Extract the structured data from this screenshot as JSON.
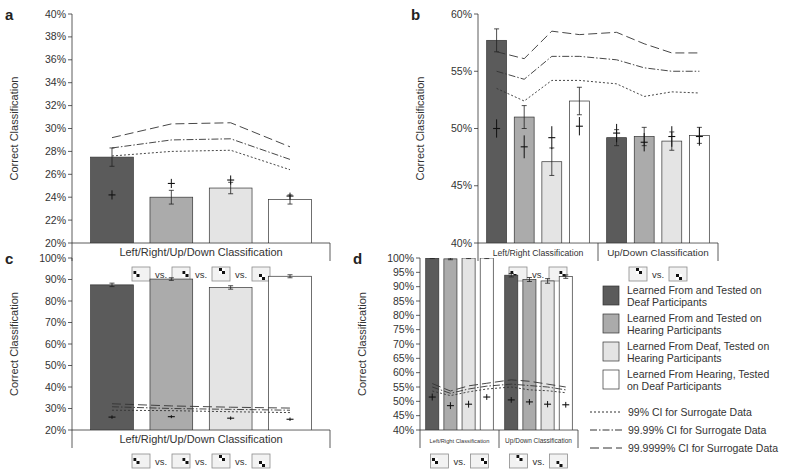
{
  "chart_data": [
    {
      "type": "bar",
      "title": "a",
      "y_label": "Correct Classification",
      "categories": [
        "Left/Right/Up/Down Classification"
      ],
      "separator_text": "vs.",
      "ylim": [
        20,
        40
      ],
      "yticks": [
        {
          "value": 20,
          "label": "20%"
        },
        {
          "value": 22,
          "label": "22%"
        },
        {
          "value": 24,
          "label": "24%"
        },
        {
          "value": 26,
          "label": "26%"
        },
        {
          "value": 28,
          "label": "28%"
        },
        {
          "value": 30,
          "label": "30%"
        },
        {
          "value": 32,
          "label": "32%"
        },
        {
          "value": 34,
          "label": "34%"
        },
        {
          "value": 36,
          "label": "36%"
        },
        {
          "value": 38,
          "label": "38%"
        },
        {
          "value": 40,
          "label": "40%"
        }
      ],
      "series": [
        {
          "name": "Learned From and Tested on Deaf Participants",
          "type": "bar",
          "color": "#5b5b5b",
          "marker": "plus",
          "values": [
            27.5
          ],
          "errors": [
            0.8
          ],
          "surrogate_values": [
            24.2
          ],
          "surrogate_errors": [
            0.4
          ]
        },
        {
          "name": "Learned From and Tested on Hearing Participants",
          "type": "bar",
          "color": "#ababab",
          "marker": "plus",
          "values": [
            24.0
          ],
          "errors": [
            0.6
          ],
          "surrogate_values": [
            25.2
          ],
          "surrogate_errors": [
            0.4
          ]
        },
        {
          "name": "Learned From Deaf, Tested on Hearing Participants",
          "type": "bar",
          "color": "#e4e4e4",
          "marker": "plus",
          "values": [
            24.8
          ],
          "errors": [
            0.5
          ],
          "surrogate_values": [
            25.5
          ],
          "surrogate_errors": [
            0.4
          ]
        },
        {
          "name": "Learned From Hearing, Tested on Deaf Participants",
          "type": "bar",
          "color": "#ffffff",
          "marker": "plus",
          "values": [
            23.8
          ],
          "errors": [
            0.4
          ],
          "surrogate_values": [
            24.1
          ],
          "surrogate_errors": [
            0.3
          ]
        },
        {
          "name": "99% CI for Surrogate Data",
          "type": "line",
          "line_style": "dotted",
          "color": "#333333",
          "values": [
            [
              27.6,
              28.0,
              28.1,
              26.4
            ]
          ]
        },
        {
          "name": "99.99% CI for Surrogate Data",
          "type": "line",
          "line_style": "dashdot",
          "color": "#333333",
          "values": [
            [
              28.3,
              29.0,
              29.1,
              27.3
            ]
          ]
        },
        {
          "name": "99.9999% CI for Surrogate Data",
          "type": "line",
          "line_style": "dashed",
          "color": "#333333",
          "values": [
            [
              29.2,
              30.4,
              30.5,
              28.4
            ]
          ]
        }
      ]
    },
    {
      "type": "bar",
      "title": "b",
      "y_label": "Correct Classification",
      "categories": [
        "Left/Right Classification",
        "Up/Down Classification"
      ],
      "separator_text": "vs.",
      "ylim": [
        40,
        60
      ],
      "yticks": [
        {
          "value": 40,
          "label": "40%"
        },
        {
          "value": 45,
          "label": "45%"
        },
        {
          "value": 50,
          "label": "50%"
        },
        {
          "value": 55,
          "label": "55%"
        },
        {
          "value": 60,
          "label": "60%"
        }
      ],
      "series": [
        {
          "type": "bar",
          "color": "#5b5b5b",
          "marker": "plus",
          "values": [
            57.7,
            49.2
          ],
          "errors": [
            1.0,
            0.7
          ],
          "surrogate_values": [
            50.0,
            49.6
          ],
          "surrogate_errors": [
            0.8,
            0.8
          ]
        },
        {
          "type": "bar",
          "color": "#ababab",
          "marker": "plus",
          "values": [
            51.0,
            49.3
          ],
          "errors": [
            1.0,
            0.8
          ],
          "surrogate_values": [
            48.4,
            48.8
          ],
          "surrogate_errors": [
            1.0,
            0.8
          ]
        },
        {
          "type": "bar",
          "color": "#e4e4e4",
          "marker": "plus",
          "values": [
            47.1,
            48.9
          ],
          "errors": [
            1.2,
            0.8
          ],
          "surrogate_values": [
            49.2,
            49.3
          ],
          "surrogate_errors": [
            1.0,
            0.9
          ]
        },
        {
          "type": "bar",
          "color": "#ffffff",
          "marker": "plus",
          "values": [
            52.4,
            49.4
          ],
          "errors": [
            1.2,
            0.7
          ],
          "surrogate_values": [
            50.2,
            49.3
          ],
          "surrogate_errors": [
            0.8,
            0.8
          ]
        },
        {
          "type": "line",
          "line_style": "dotted",
          "color": "#333333",
          "values": [
            [
              53.5,
              52.4,
              54.2,
              54.2
            ],
            [
              53.9,
              52.8,
              53.2,
              53.1
            ]
          ]
        },
        {
          "type": "line",
          "line_style": "dashdot",
          "color": "#333333",
          "values": [
            [
              55.0,
              54.3,
              56.3,
              56.3
            ],
            [
              56.0,
              55.3,
              55.0,
              55.0
            ]
          ]
        },
        {
          "type": "line",
          "line_style": "dashed",
          "color": "#333333",
          "values": [
            [
              56.7,
              56.1,
              58.5,
              58.2
            ],
            [
              58.4,
              57.4,
              56.6,
              56.6
            ]
          ]
        }
      ]
    },
    {
      "type": "bar",
      "title": "c",
      "y_label": "Correct Classification",
      "categories": [
        "Left/Right/Up/Down Classification"
      ],
      "separator_text": "vs.",
      "ylim": [
        20,
        100
      ],
      "yticks": [
        {
          "value": 20,
          "label": "20%"
        },
        {
          "value": 30,
          "label": "30%"
        },
        {
          "value": 40,
          "label": "40%"
        },
        {
          "value": 50,
          "label": "50%"
        },
        {
          "value": 60,
          "label": "60%"
        },
        {
          "value": 70,
          "label": "70%"
        },
        {
          "value": 80,
          "label": "80%"
        },
        {
          "value": 90,
          "label": "90%"
        },
        {
          "value": 100,
          "label": "100%"
        }
      ],
      "series": [
        {
          "type": "bar",
          "color": "#5b5b5b",
          "marker": "plus",
          "values": [
            87.5
          ],
          "errors": [
            0.8
          ],
          "surrogate_values": [
            26.0
          ],
          "surrogate_errors": [
            0.8
          ]
        },
        {
          "type": "bar",
          "color": "#ababab",
          "marker": "plus",
          "values": [
            90.2
          ],
          "errors": [
            0.6
          ],
          "surrogate_values": [
            26.2
          ],
          "surrogate_errors": [
            0.7
          ]
        },
        {
          "type": "bar",
          "color": "#e4e4e4",
          "marker": "plus",
          "values": [
            86.3
          ],
          "errors": [
            0.8
          ],
          "surrogate_values": [
            25.5
          ],
          "surrogate_errors": [
            0.8
          ]
        },
        {
          "type": "bar",
          "color": "#ffffff",
          "marker": "plus",
          "values": [
            91.5
          ],
          "errors": [
            0.7
          ],
          "surrogate_values": [
            25.0
          ],
          "surrogate_errors": [
            0.8
          ]
        },
        {
          "type": "line",
          "line_style": "dotted",
          "color": "#333333",
          "values": [
            [
              29.2,
              29.0,
              28.5,
              28.1
            ]
          ]
        },
        {
          "type": "line",
          "line_style": "dashdot",
          "color": "#333333",
          "values": [
            [
              30.8,
              30.0,
              29.6,
              29.2
            ]
          ]
        },
        {
          "type": "line",
          "line_style": "dashed",
          "color": "#333333",
          "values": [
            [
              32.2,
              31.2,
              30.6,
              30.2
            ]
          ]
        }
      ]
    },
    {
      "type": "bar",
      "title": "d",
      "y_label": "Correct Classification",
      "categories": [
        "Left/Right Classification",
        "Up/Down Classification"
      ],
      "separator_text": "vs.",
      "ylim": [
        40,
        100
      ],
      "yticks": [
        {
          "value": 40,
          "label": "40%"
        },
        {
          "value": 45,
          "label": "45%"
        },
        {
          "value": 50,
          "label": "50%"
        },
        {
          "value": 55,
          "label": "55%"
        },
        {
          "value": 60,
          "label": "60%"
        },
        {
          "value": 65,
          "label": "65%"
        },
        {
          "value": 70,
          "label": "70%"
        },
        {
          "value": 75,
          "label": "75%"
        },
        {
          "value": 80,
          "label": "80%"
        },
        {
          "value": 85,
          "label": "85%"
        },
        {
          "value": 90,
          "label": "90%"
        },
        {
          "value": 95,
          "label": "95%"
        },
        {
          "value": 100,
          "label": "100%"
        }
      ],
      "series": [
        {
          "type": "bar",
          "color": "#5b5b5b",
          "marker": "plus",
          "values": [
            100,
            94.0
          ],
          "errors": [
            0.2,
            0.6
          ],
          "surrogate_values": [
            51.5,
            50.5
          ],
          "surrogate_errors": [
            1.2,
            1.0
          ]
        },
        {
          "type": "bar",
          "color": "#ababab",
          "marker": "plus",
          "values": [
            99.7,
            92.5
          ],
          "errors": [
            0.3,
            0.7
          ],
          "surrogate_values": [
            48.5,
            49.8
          ],
          "surrogate_errors": [
            1.2,
            1.0
          ]
        },
        {
          "type": "bar",
          "color": "#e4e4e4",
          "marker": "plus",
          "values": [
            100,
            92.0
          ],
          "errors": [
            0.2,
            0.8
          ],
          "surrogate_values": [
            49.0,
            49.0
          ],
          "surrogate_errors": [
            1.2,
            1.1
          ]
        },
        {
          "type": "bar",
          "color": "#ffffff",
          "marker": "plus",
          "values": [
            100,
            93.5
          ],
          "errors": [
            0.2,
            0.6
          ],
          "surrogate_values": [
            51.5,
            48.8
          ],
          "surrogate_errors": [
            1.0,
            1.0
          ]
        },
        {
          "type": "line",
          "line_style": "dotted",
          "color": "#333333",
          "values": [
            [
              53.6,
              52.0,
              53.3,
              54.3
            ],
            [
              55.0,
              54.0,
              53.7,
              53.0
            ]
          ]
        },
        {
          "type": "line",
          "line_style": "dashdot",
          "color": "#333333",
          "values": [
            [
              55.0,
              52.8,
              54.3,
              55.3
            ],
            [
              56.0,
              55.5,
              55.0,
              54.0
            ]
          ]
        },
        {
          "type": "line",
          "line_style": "dashed",
          "color": "#333333",
          "values": [
            [
              56.2,
              53.6,
              55.4,
              56.3
            ],
            [
              57.5,
              57.0,
              56.0,
              55.0
            ]
          ]
        }
      ]
    }
  ]
}
